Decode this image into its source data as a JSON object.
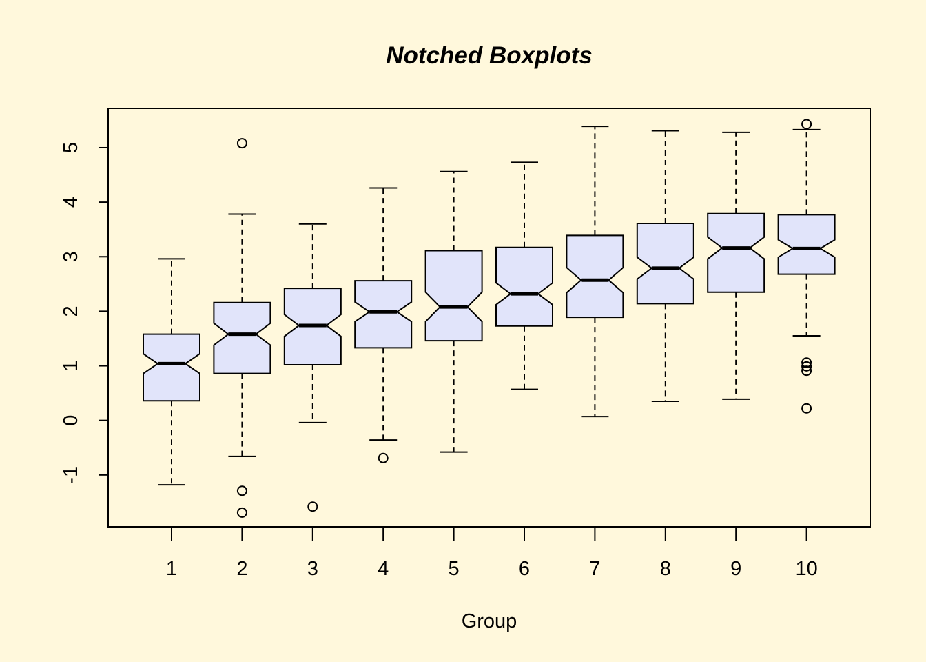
{
  "chart_data": {
    "type": "boxplot",
    "notched": true,
    "title": "Notched Boxplots",
    "xlabel": "Group",
    "ylabel": "",
    "categories": [
      "1",
      "2",
      "3",
      "4",
      "5",
      "6",
      "7",
      "8",
      "9",
      "10"
    ],
    "ylim": [
      -1.95,
      5.72
    ],
    "yticks": [
      -1,
      0,
      1,
      2,
      3,
      4,
      5
    ],
    "ytick_labels": [
      "-1",
      "0",
      "1",
      "2",
      "3",
      "4",
      "5"
    ],
    "box_fill": "#e1e4fa",
    "background": "#fff8dc",
    "line_color": "#000000",
    "grid": false,
    "boxes": [
      {
        "group": "1",
        "whisker_low": -1.18,
        "q1": 0.36,
        "median": 1.04,
        "q3": 1.58,
        "whisker_high": 2.96,
        "notch_low": 0.86,
        "notch_high": 1.22,
        "outliers": []
      },
      {
        "group": "2",
        "whisker_low": -0.66,
        "q1": 0.86,
        "median": 1.58,
        "q3": 2.16,
        "whisker_high": 3.78,
        "notch_low": 1.38,
        "notch_high": 1.78,
        "outliers": [
          5.08,
          -1.29,
          -1.69
        ]
      },
      {
        "group": "3",
        "whisker_low": -0.04,
        "q1": 1.02,
        "median": 1.74,
        "q3": 2.42,
        "whisker_high": 3.6,
        "notch_low": 1.54,
        "notch_high": 1.94,
        "outliers": [
          -1.58
        ]
      },
      {
        "group": "4",
        "whisker_low": -0.36,
        "q1": 1.33,
        "median": 1.99,
        "q3": 2.56,
        "whisker_high": 4.26,
        "notch_low": 1.81,
        "notch_high": 2.17,
        "outliers": [
          -0.69
        ]
      },
      {
        "group": "5",
        "whisker_low": -0.58,
        "q1": 1.46,
        "median": 2.08,
        "q3": 3.11,
        "whisker_high": 4.56,
        "notch_low": 1.81,
        "notch_high": 2.35,
        "outliers": []
      },
      {
        "group": "6",
        "whisker_low": 0.57,
        "q1": 1.73,
        "median": 2.32,
        "q3": 3.17,
        "whisker_high": 4.73,
        "notch_low": 2.12,
        "notch_high": 2.52,
        "outliers": []
      },
      {
        "group": "7",
        "whisker_low": 0.07,
        "q1": 1.89,
        "median": 2.57,
        "q3": 3.39,
        "whisker_high": 5.39,
        "notch_low": 2.34,
        "notch_high": 2.8,
        "outliers": []
      },
      {
        "group": "8",
        "whisker_low": 0.35,
        "q1": 2.14,
        "median": 2.79,
        "q3": 3.61,
        "whisker_high": 5.31,
        "notch_low": 2.59,
        "notch_high": 2.99,
        "outliers": []
      },
      {
        "group": "9",
        "whisker_low": 0.39,
        "q1": 2.35,
        "median": 3.16,
        "q3": 3.79,
        "whisker_high": 5.28,
        "notch_low": 2.96,
        "notch_high": 3.36,
        "outliers": []
      },
      {
        "group": "10",
        "whisker_low": 1.55,
        "q1": 2.68,
        "median": 3.15,
        "q3": 3.77,
        "whisker_high": 5.33,
        "notch_low": 2.99,
        "notch_high": 3.31,
        "outliers": [
          5.43,
          1.06,
          0.99,
          0.91,
          0.22
        ]
      }
    ]
  }
}
